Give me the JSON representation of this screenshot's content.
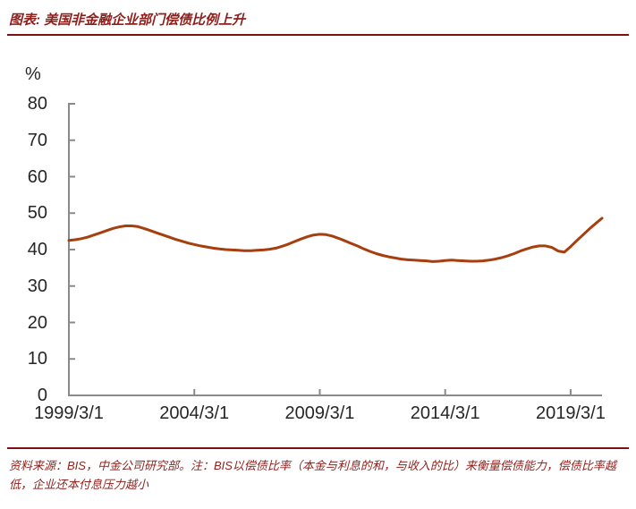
{
  "header": {
    "title": "图表: 美国非金融企业部门偿债比例上升"
  },
  "chart_data": {
    "type": "line",
    "title": "美国非金融企业部门偿债比例上升",
    "unit_label": "%",
    "ylim": [
      0,
      80
    ],
    "yticks": [
      0,
      10,
      20,
      30,
      40,
      50,
      60,
      70,
      80
    ],
    "grid": false,
    "legend_position": "none",
    "x_frequency": "quarterly",
    "x_start": "1999/3/1",
    "x_end": "2020/6/1",
    "xtick_labels": [
      "1999/3/1",
      "2004/3/1",
      "2009/3/1",
      "2014/3/1",
      "2019/3/1"
    ],
    "points_per_xtick": 20,
    "line_color": "#A63E0E",
    "axis_color": "#8A8A8A",
    "values": [
      42.5,
      42.7,
      43.0,
      43.4,
      44.0,
      44.6,
      45.2,
      45.8,
      46.2,
      46.5,
      46.5,
      46.3,
      45.8,
      45.2,
      44.6,
      44.0,
      43.4,
      42.8,
      42.3,
      41.8,
      41.4,
      41.0,
      40.7,
      40.4,
      40.2,
      40.0,
      39.9,
      39.8,
      39.7,
      39.7,
      39.8,
      39.9,
      40.1,
      40.4,
      40.9,
      41.5,
      42.2,
      42.9,
      43.5,
      44.0,
      44.2,
      44.1,
      43.7,
      43.1,
      42.4,
      41.7,
      41.0,
      40.2,
      39.5,
      38.9,
      38.4,
      38.0,
      37.7,
      37.4,
      37.2,
      37.1,
      37.0,
      36.9,
      36.7,
      36.8,
      37.0,
      37.1,
      37.0,
      36.9,
      36.8,
      36.8,
      36.9,
      37.1,
      37.4,
      37.8,
      38.3,
      38.9,
      39.6,
      40.2,
      40.7,
      41.0,
      41.0,
      40.6,
      39.6,
      39.3,
      40.8,
      42.5,
      44.1,
      45.7,
      47.2,
      48.6
    ]
  },
  "footer": {
    "source_note": "资料来源：BIS，中金公司研究部。注：BIS以偿债比率（本金与利息的和，与收入的比）来衡量偿债能力，偿债比率越低，企业还本付息压力越小"
  }
}
